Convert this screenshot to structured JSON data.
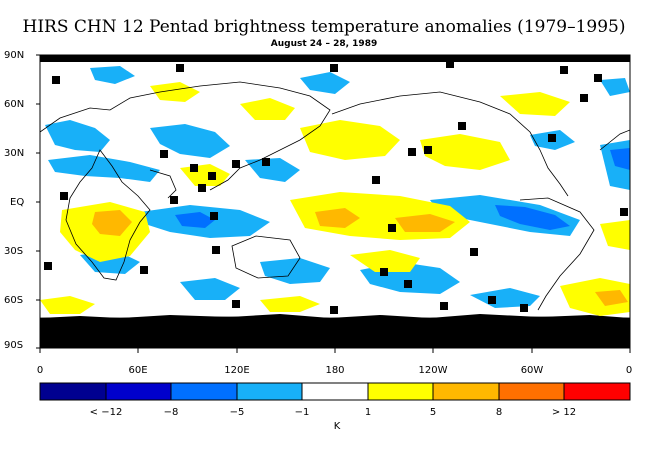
{
  "title": "HIRS CHN 12 Pentad brightness temperature anomalies (1979–1995)",
  "subtitle": "August 24 – 28, 1989",
  "lat_labels": [
    "90N",
    "60N",
    "30N",
    "EQ",
    "30S",
    "60S",
    "90S"
  ],
  "lon_labels": [
    "0",
    "60E",
    "120E",
    "180",
    "120W",
    "60W",
    "0"
  ],
  "colorbar": {
    "labels": [
      "< −12",
      "−8",
      "−5",
      "−1",
      "1",
      "5",
      "8",
      "> 12"
    ],
    "unit": "K",
    "colors": [
      "#000090",
      "#0000cc",
      "#0070ff",
      "#18b0f8",
      "#ffffff",
      "#ffff00",
      "#ffb800",
      "#ff7000",
      "#ff0000"
    ]
  },
  "colors": {
    "missing": "#000000",
    "coastline": "#000000",
    "frame": "#000000"
  }
}
